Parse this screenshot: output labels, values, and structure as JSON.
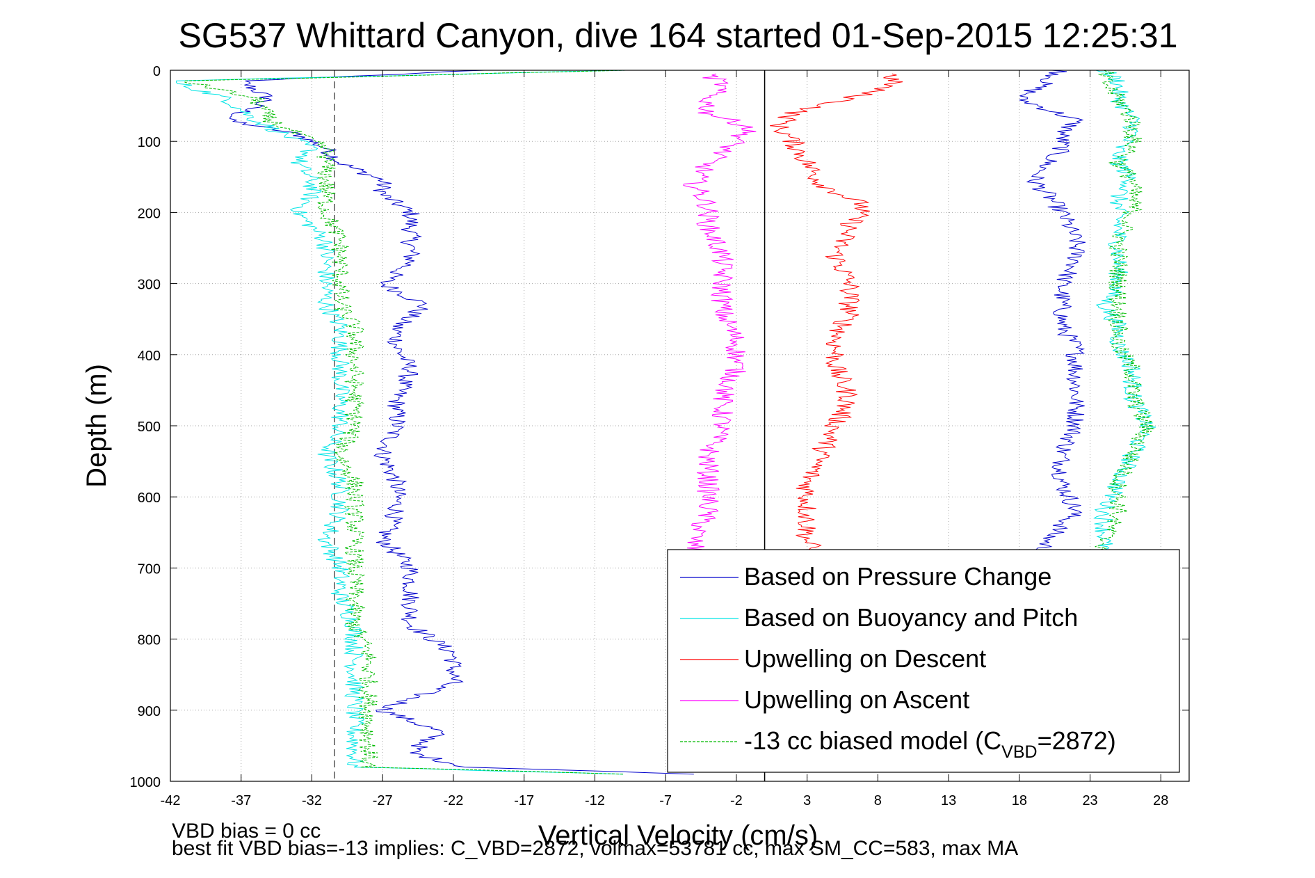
{
  "chart_data": {
    "type": "line",
    "title": "SG537 Whittard Canyon, dive 164 started 01-Sep-2015 12:25:31",
    "xlabel": "Vertical Velocity (cm/s)",
    "ylabel": "Depth (m)",
    "xlim": [
      -42,
      30
    ],
    "ylim": [
      0,
      1000
    ],
    "y_reversed": true,
    "grid": true,
    "legend_placement": "bottom-right",
    "xticks": [
      -42,
      -37,
      -32,
      -27,
      -22,
      -17,
      -12,
      -7,
      -2,
      3,
      8,
      13,
      18,
      23,
      28
    ],
    "yticks": [
      0,
      100,
      200,
      300,
      400,
      500,
      600,
      700,
      800,
      900,
      1000
    ],
    "xtick_labels": [
      "-42",
      "-37",
      "-32",
      "-27",
      "-22",
      "-17",
      "-12",
      "-7",
      "-2",
      "3",
      "8",
      "13",
      "18",
      "23",
      "28"
    ],
    "ytick_labels": [
      "0",
      "100",
      "200",
      "300",
      "400",
      "500",
      "600",
      "700",
      "800",
      "900",
      "1000"
    ],
    "reference_lines": [
      {
        "axis": "x",
        "value": 0,
        "style": "solid",
        "color": "#000000"
      },
      {
        "axis": "x",
        "value": -30.4,
        "style": "dashed",
        "color": "#555555"
      }
    ],
    "series": [
      {
        "name": "Based on Pressure Change",
        "color": "#0000cc",
        "style": "solid",
        "depth": [
          0,
          15,
          40,
          70,
          90,
          110,
          130,
          155,
          175,
          200,
          240,
          270,
          300,
          330,
          360,
          390,
          420,
          460,
          500,
          540,
          580,
          620,
          660,
          700,
          740,
          780,
          820,
          860,
          900,
          930,
          960,
          980,
          990
        ],
        "down": [
          -20,
          -37,
          -35,
          -38,
          -33,
          -31,
          -30,
          -27,
          -27,
          -25,
          -25,
          -25,
          -27,
          -24,
          -26,
          -26,
          -25,
          -26,
          -26,
          -27,
          -26,
          -26,
          -27,
          -25,
          -25,
          -25,
          -22,
          -22,
          -27,
          -23,
          -25,
          -21,
          -5
        ],
        "up": [
          21,
          20,
          18,
          22,
          21,
          21,
          20,
          19,
          20,
          21,
          22,
          22,
          21,
          21,
          21,
          22,
          22,
          22,
          22,
          21,
          21,
          22,
          20,
          19
        ]
      },
      {
        "name": "Based on Buoyancy and Pitch",
        "color": "#00e5e5",
        "style": "solid",
        "depth": [
          0,
          15,
          40,
          70,
          90,
          110,
          130,
          155,
          175,
          200,
          240,
          270,
          300,
          330,
          360,
          390,
          420,
          460,
          500,
          540,
          580,
          620,
          660,
          700,
          740,
          780,
          820,
          860,
          900,
          930,
          960,
          980,
          990
        ],
        "down": [
          -10,
          -42,
          -38,
          -36,
          -34,
          -32,
          -33,
          -32,
          -32,
          -33,
          -31,
          -31,
          -31,
          -31,
          -30,
          -30,
          -30,
          -30,
          -30,
          -31,
          -30,
          -30,
          -31,
          -30,
          -30,
          -29,
          -29,
          -29,
          -29,
          -29,
          -29,
          -29,
          -10
        ],
        "up": [
          24,
          25,
          25,
          26,
          26,
          25,
          25,
          26,
          25,
          25,
          25,
          25,
          25,
          24,
          25,
          25,
          26,
          26,
          27,
          26,
          25,
          24,
          24,
          24
        ]
      },
      {
        "name": "Upwelling on Descent",
        "color": "#ff0000",
        "style": "solid",
        "depth": [
          5,
          20,
          40,
          60,
          80,
          100,
          130,
          160,
          190,
          220,
          260,
          300,
          340,
          380,
          420,
          460,
          500,
          540,
          580,
          620,
          660,
          700
        ],
        "values": [
          9,
          9,
          6,
          2,
          1,
          2,
          3,
          4,
          7,
          6,
          5,
          6,
          6,
          5,
          5,
          6,
          5,
          4,
          3,
          3,
          3,
          4
        ]
      },
      {
        "name": "Upwelling on Ascent",
        "color": "#ff00ff",
        "style": "solid",
        "depth": [
          5,
          20,
          40,
          60,
          80,
          100,
          130,
          160,
          190,
          220,
          260,
          300,
          340,
          380,
          420,
          460,
          500,
          540,
          580,
          620,
          660,
          700
        ],
        "values": [
          -4,
          -3,
          -4,
          -4,
          -1,
          -2,
          -4,
          -5,
          -4,
          -4,
          -3,
          -3,
          -3,
          -2,
          -2,
          -3,
          -3,
          -4,
          -4,
          -4,
          -5,
          -5
        ]
      },
      {
        "name": "-13 cc biased model (C",
        "name_sub": "VBD",
        "name_suffix": "=2872)",
        "color": "#00bb00",
        "style": "dashed",
        "depth": [
          0,
          15,
          40,
          70,
          90,
          110,
          130,
          155,
          175,
          200,
          240,
          270,
          300,
          330,
          360,
          390,
          420,
          460,
          500,
          540,
          580,
          620,
          660,
          700,
          740,
          780,
          820,
          860,
          900,
          930,
          960,
          980,
          990
        ],
        "down": [
          -10,
          -41,
          -36,
          -35,
          -33,
          -31,
          -31,
          -31,
          -31,
          -31,
          -30,
          -30,
          -30,
          -30,
          -29,
          -29,
          -29,
          -29,
          -29,
          -30,
          -29,
          -29,
          -29,
          -29,
          -29,
          -29,
          -28,
          -28,
          -28,
          -28,
          -28,
          -28,
          -10
        ],
        "up": [
          24,
          24,
          25,
          26,
          26,
          26,
          25,
          26,
          26,
          26,
          25,
          25,
          25,
          25,
          25,
          25,
          26,
          26,
          27,
          26,
          25,
          25,
          24,
          24
        ]
      }
    ]
  },
  "footer": {
    "line1": "VBD bias = 0 cc",
    "line2": "best fit VBD bias=-13 implies: C_VBD=2872, volmax=53781 cc, max SM_CC=583, max MA"
  }
}
